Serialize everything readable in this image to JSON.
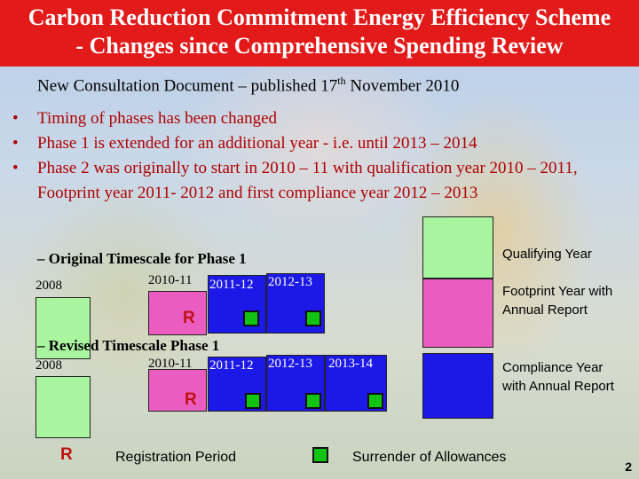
{
  "title": {
    "line1": "Carbon Reduction Commitment Energy Efficiency Scheme",
    "line2": "- Changes since Comprehensive Spending Review"
  },
  "subtitle": {
    "before": "New Consultation Document – published 17",
    "sup": "th",
    "after": " November 2010"
  },
  "bullets": [
    "Timing of phases has been changed",
    "Phase 1 is extended for an additional year - i.e. until 2013 – 2014",
    "Phase 2 was originally to start in 2010 – 11 with qualification year 2010 – 2011, Footprint year 2011- 2012 and first compliance year 2012 – 2013"
  ],
  "original": {
    "heading": "– Original Timescale for Phase 1",
    "years": [
      "2008",
      "2010-11",
      "2011-12",
      "2012-13"
    ],
    "registration_marker": "R"
  },
  "revised": {
    "heading": "– Revised Timescale Phase 1",
    "years": [
      "2008",
      "2010-11",
      "2011-12",
      "2012-13",
      "2013-14"
    ],
    "registration_marker": "R"
  },
  "legend": {
    "qualifying": "Qualifying Year",
    "footprint": "Footprint Year with Annual Report",
    "compliance": "Compliance Year with Annual Report"
  },
  "bottom_legend": {
    "r_marker": "R",
    "registration": "Registration Period",
    "surrender": "Surrender of Allowances"
  },
  "page_number": "2",
  "colors": {
    "title_bg": "#e21a1a",
    "qualifying": "#a9f59f",
    "footprint": "#ea5cc0",
    "compliance": "#1c19e8",
    "surrender_square": "#12c412",
    "bullet_text": "#b00000"
  }
}
